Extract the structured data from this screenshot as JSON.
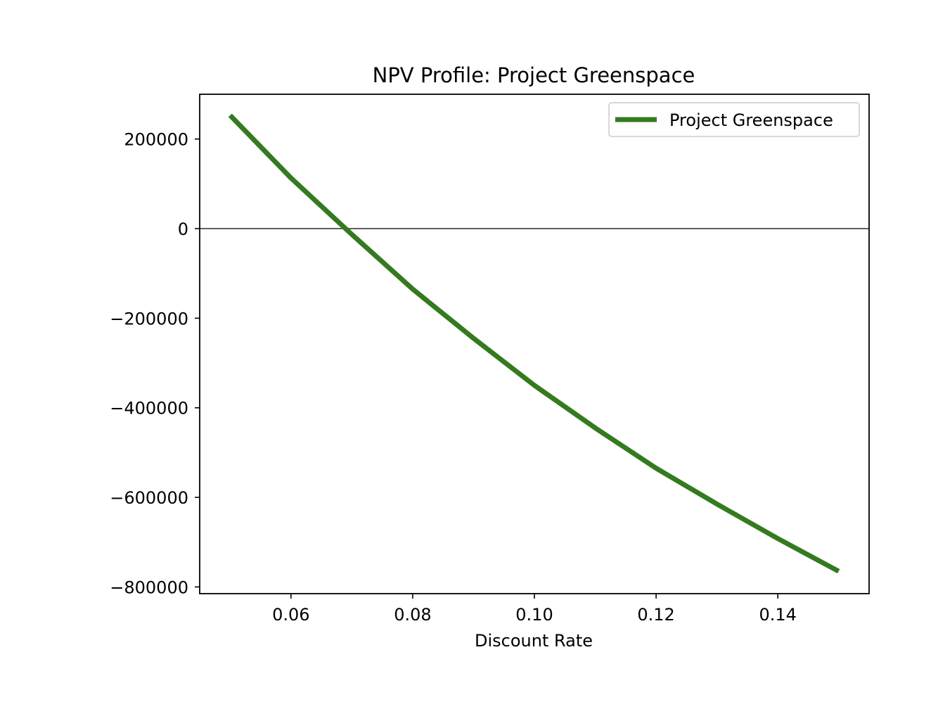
{
  "chart_data": {
    "type": "line",
    "title": "NPV Profile: Project Greenspace",
    "xlabel": "Discount Rate",
    "ylabel": "",
    "xlim": [
      0.045,
      0.155
    ],
    "ylim": [
      -815000,
      300000
    ],
    "x_ticks": [
      0.06,
      0.08,
      0.1,
      0.12,
      0.14
    ],
    "x_tick_labels": [
      "0.06",
      "0.08",
      "0.10",
      "0.12",
      "0.14"
    ],
    "y_ticks": [
      200000,
      0,
      -200000,
      -400000,
      -600000,
      -800000
    ],
    "y_tick_labels": [
      "200000",
      "0",
      "−200000",
      "−400000",
      "−600000",
      "−800000"
    ],
    "grid": false,
    "legend_position": "top-right",
    "reference_line": {
      "y": 0,
      "color": "#000000"
    },
    "series": [
      {
        "name": "Project Greenspace",
        "color": "#347a1f",
        "x": [
          0.05,
          0.06,
          0.07,
          0.08,
          0.09,
          0.1,
          0.11,
          0.12,
          0.13,
          0.14,
          0.15
        ],
        "y": [
          253000,
          113000,
          -13000,
          -135000,
          -245000,
          -350000,
          -445000,
          -535000,
          -615000,
          -692000,
          -765000
        ]
      }
    ]
  }
}
